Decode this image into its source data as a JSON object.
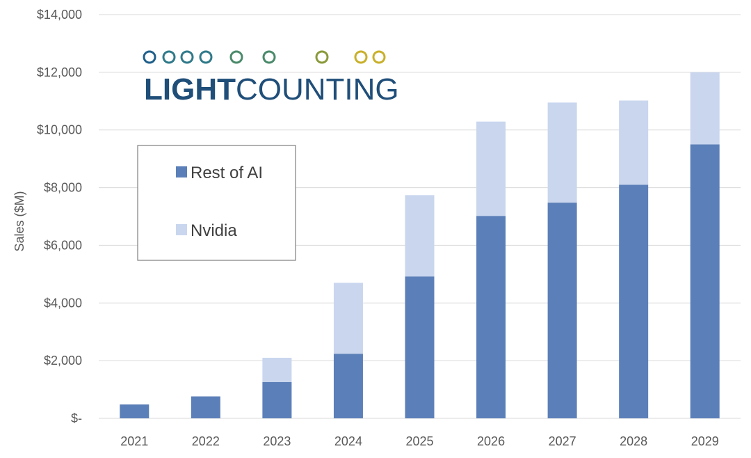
{
  "chart_data": {
    "type": "bar",
    "stacked": true,
    "categories": [
      "2021",
      "2022",
      "2023",
      "2024",
      "2025",
      "2026",
      "2027",
      "2028",
      "2029"
    ],
    "series": [
      {
        "name": "Rest of AI",
        "color": "#5b7fb8",
        "values": [
          480,
          760,
          1260,
          2240,
          4920,
          7020,
          7480,
          8100,
          9500
        ]
      },
      {
        "name": "Nvidia",
        "color": "#c9d6ee",
        "values": [
          0,
          0,
          840,
          2460,
          2820,
          3270,
          3470,
          2920,
          2500
        ]
      }
    ],
    "ylabel": "Sales ($M)",
    "ylim": [
      0,
      14000
    ],
    "yticks": [
      0,
      2000,
      4000,
      6000,
      8000,
      10000,
      12000,
      14000
    ],
    "ytick_labels": [
      "$-",
      "$2,000",
      "$4,000",
      "$6,000",
      "$8,000",
      "$10,000",
      "$12,000",
      "$14,000"
    ],
    "grid": true,
    "legend_position": "left-middle"
  },
  "logo": {
    "text_bold": "LIGHT",
    "text_regular": "COUNTING",
    "colors": [
      "#1f5f8b",
      "#2f7a8a",
      "#4a8a6a",
      "#8a9a3a",
      "#c9b02a"
    ]
  }
}
